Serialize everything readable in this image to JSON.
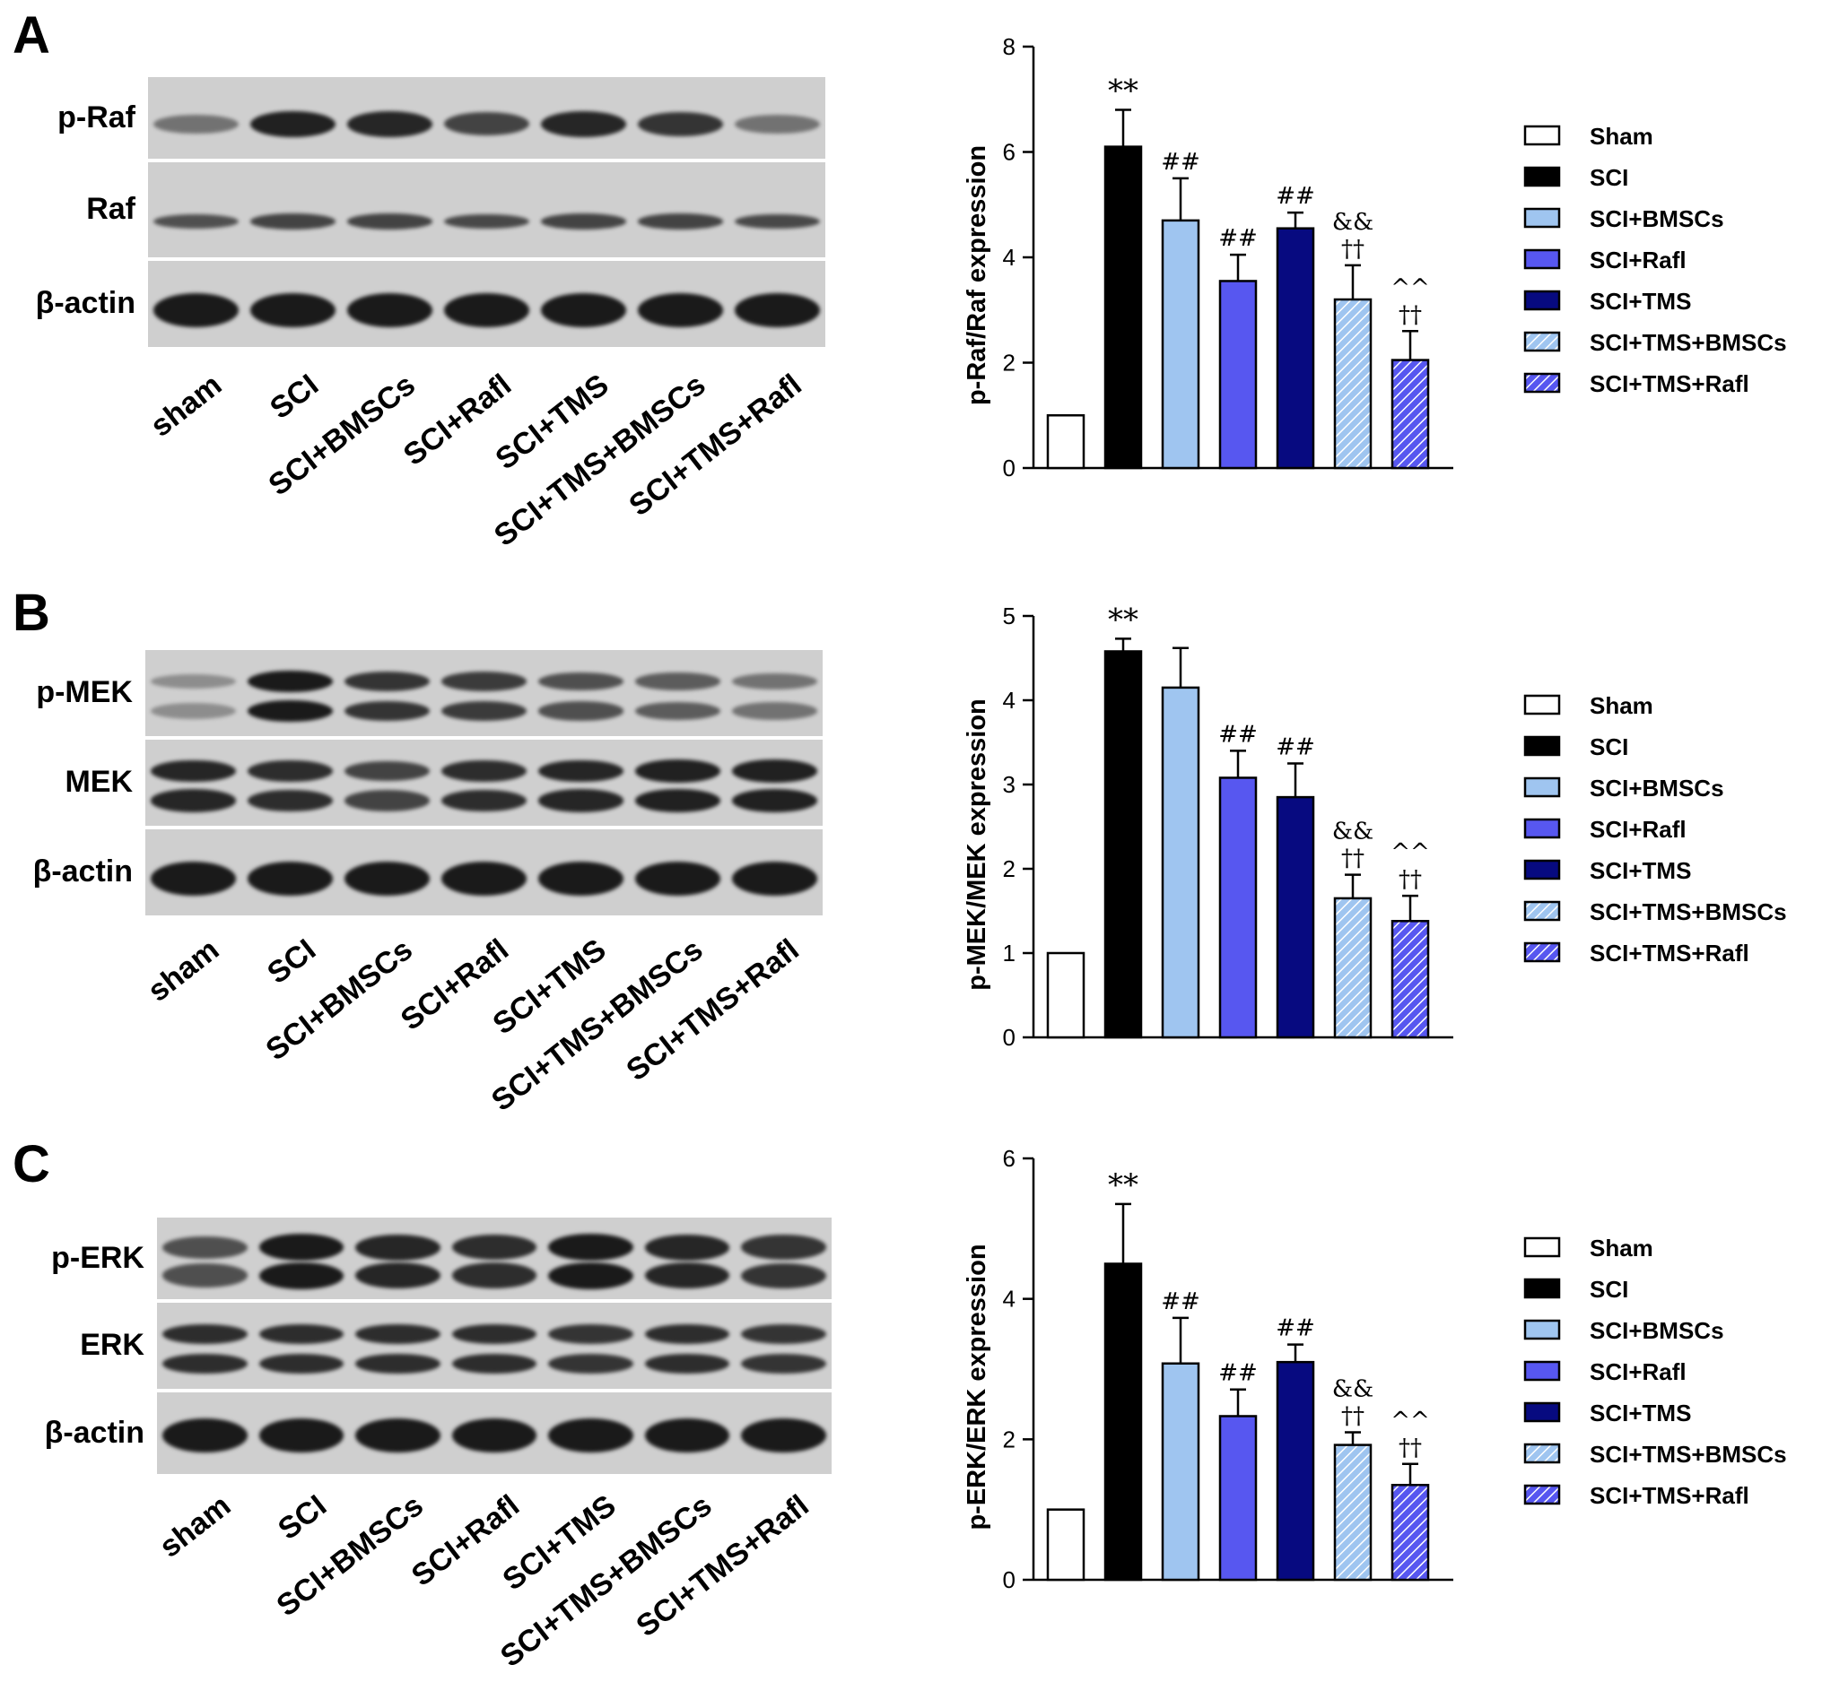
{
  "panels": [
    {
      "letter": "A",
      "blot_rows": [
        "p-Raf",
        "Raf",
        "β-actin"
      ],
      "lane_labels": [
        "sham",
        "SCI",
        "SCI+BMSCs",
        "SCI+Rafl",
        "SCI+TMS",
        "SCI+TMS+BMSCs",
        "SCI+TMS+Rafl"
      ],
      "chart_data": {
        "type": "bar",
        "categories": [
          "Sham",
          "SCI",
          "SCI+BMSCs",
          "SCI+Rafl",
          "SCI+TMS",
          "SCI+TMS+BMSCs",
          "SCI+TMS+Rafl"
        ],
        "values": [
          1.0,
          6.1,
          4.7,
          3.55,
          4.55,
          3.2,
          2.05
        ],
        "errors": [
          0,
          0.7,
          0.8,
          0.5,
          0.3,
          0.65,
          0.55
        ],
        "annotations": [
          [],
          [
            "**"
          ],
          [
            "##"
          ],
          [
            "##"
          ],
          [
            "##"
          ],
          [
            "&&",
            "††"
          ],
          [
            "^^",
            "††"
          ]
        ],
        "ylabel": "p-Raf/Raf expression",
        "xlabel": "",
        "ylim": [
          0,
          8
        ],
        "yticks": [
          0,
          2,
          4,
          6,
          8
        ],
        "legend_position": "right",
        "grid": false
      }
    },
    {
      "letter": "B",
      "blot_rows": [
        "p-MEK",
        "MEK",
        "β-actin"
      ],
      "lane_labels": [
        "sham",
        "SCI",
        "SCI+BMSCs",
        "SCI+Rafl",
        "SCI+TMS",
        "SCI+TMS+BMSCs",
        "SCI+TMS+Rafl"
      ],
      "chart_data": {
        "type": "bar",
        "categories": [
          "Sham",
          "SCI",
          "SCI+BMSCs",
          "SCI+Rafl",
          "SCI+TMS",
          "SCI+TMS+BMSCs",
          "SCI+TMS+Rafl"
        ],
        "values": [
          1.0,
          4.58,
          4.15,
          3.08,
          2.85,
          1.65,
          1.38
        ],
        "errors": [
          0,
          0.15,
          0.47,
          0.32,
          0.4,
          0.28,
          0.3
        ],
        "annotations": [
          [],
          [
            "**"
          ],
          [],
          [
            "##"
          ],
          [
            "##"
          ],
          [
            "&&",
            "††"
          ],
          [
            "^^",
            "††"
          ]
        ],
        "ylabel": "p-MEK/MEK expression",
        "xlabel": "",
        "ylim": [
          0,
          5
        ],
        "yticks": [
          0,
          1,
          2,
          3,
          4,
          5
        ],
        "legend_position": "right",
        "grid": false
      }
    },
    {
      "letter": "C",
      "blot_rows": [
        "p-ERK",
        "ERK",
        "β-actin"
      ],
      "lane_labels": [
        "sham",
        "SCI",
        "SCI+BMSCs",
        "SCI+Rafl",
        "SCI+TMS",
        "SCI+TMS+BMSCs",
        "SCI+TMS+Rafl"
      ],
      "chart_data": {
        "type": "bar",
        "categories": [
          "Sham",
          "SCI",
          "SCI+BMSCs",
          "SCI+Rafl",
          "SCI+TMS",
          "SCI+TMS+BMSCs",
          "SCI+TMS+Rafl"
        ],
        "values": [
          1.0,
          4.5,
          3.08,
          2.33,
          3.1,
          1.92,
          1.35
        ],
        "errors": [
          0,
          0.85,
          0.65,
          0.38,
          0.25,
          0.18,
          0.3
        ],
        "annotations": [
          [],
          [
            "**"
          ],
          [
            "##"
          ],
          [
            "##"
          ],
          [
            "##"
          ],
          [
            "&&",
            "††"
          ],
          [
            "^^",
            "††"
          ]
        ],
        "ylabel": "p-ERK/ERK expression",
        "xlabel": "",
        "ylim": [
          0,
          6
        ],
        "yticks": [
          0,
          2,
          4,
          6
        ],
        "legend_position": "right",
        "grid": false
      }
    }
  ],
  "legend_entries": [
    "Sham",
    "SCI",
    "SCI+BMSCs",
    "SCI+Rafl",
    "SCI+TMS",
    "SCI+TMS+BMSCs",
    "SCI+TMS+Rafl"
  ],
  "series_colors": [
    "#ffffff",
    "#000000",
    "#9fc5f0",
    "#5757f0",
    "#070a80",
    "#9fc5f0",
    "#5757f0"
  ],
  "series_hatched": [
    false,
    false,
    false,
    false,
    false,
    true,
    true
  ]
}
